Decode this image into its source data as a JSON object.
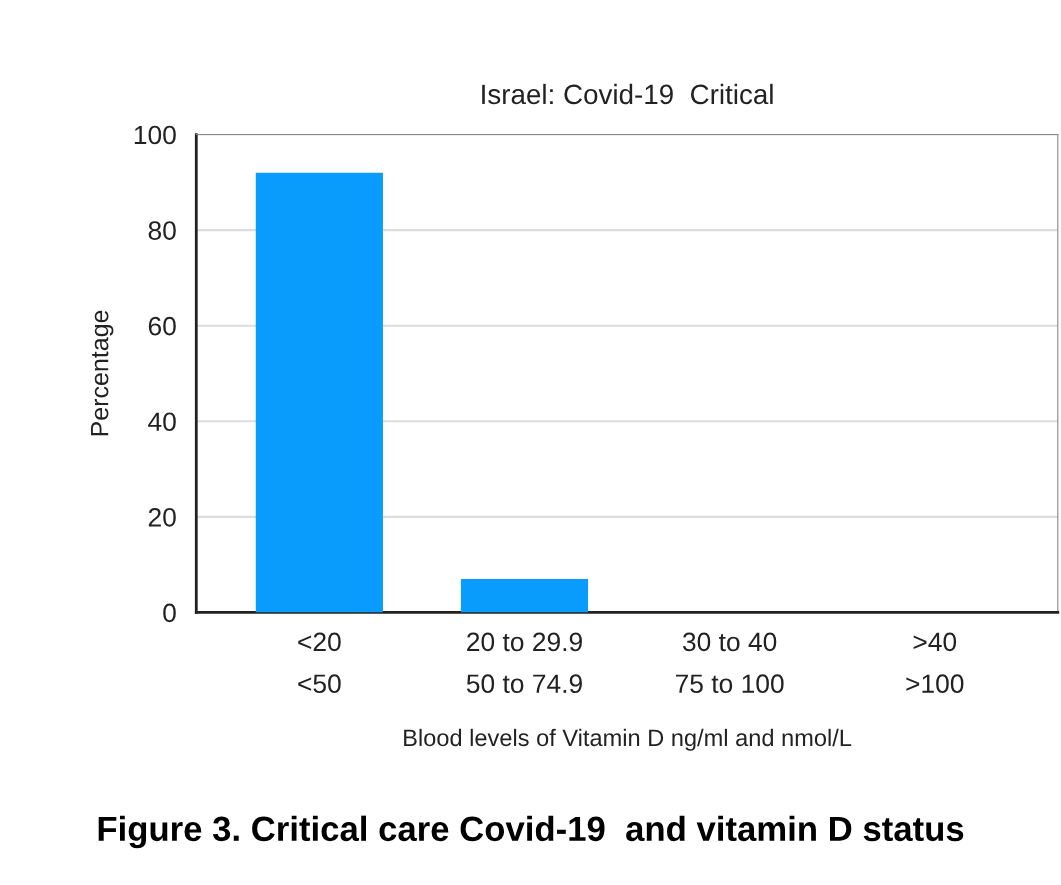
{
  "chart_data": {
    "type": "bar",
    "title": "Israel: Covid-19  Critical",
    "xlabel": "Blood levels of Vitamin D ng/ml and nmol/L",
    "ylabel": "Percentage",
    "categories": [
      "<20\n<50",
      "20 to 29.9\n50 to 74.9",
      "30 to 40\n75 to 100",
      ">40\n>100"
    ],
    "values": [
      92,
      7,
      0,
      0
    ],
    "color": "#0a9cfc",
    "ylim": [
      0,
      100
    ],
    "yticks": [
      0,
      20,
      40,
      60,
      80,
      100
    ],
    "grid": "y",
    "annotations": [
      "Figure 3. Critical care Covid-19  and vitamin D status"
    ]
  }
}
